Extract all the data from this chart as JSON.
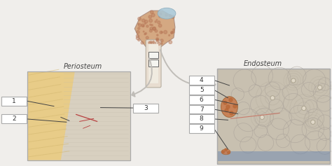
{
  "bg_color": "#f0eeeb",
  "periosteum_label": "Periosteum",
  "endosteum_label": "Endosteum",
  "bone_colors": {
    "epiphysis_spongy": "#d4a882",
    "epiphysis_cartilage": "#a8c8d8",
    "diaphysis_outer": "#e8ddd0",
    "diaphysis_inner": "#f0ebe0",
    "periosteum_yellow": "#e8cc88",
    "periosteum_fiber": "#d4b870",
    "compact_bg": "#d8d0c0",
    "compact_line": "#c0b8a8",
    "endosteum_bg": "#c8c0b0",
    "osteon_ring": "#b8b0a0",
    "osteon_orange": "#c87848",
    "osteon_orange2": "#b86838",
    "vessel_red": "#b84040",
    "vessel_blue": "#6080b0",
    "canal_center": "#e0d8c8"
  },
  "label_box_color": "#ffffff",
  "label_box_edge": "#aaaaaa",
  "line_color": "#444444",
  "arrow_color": "#c0bdb8"
}
